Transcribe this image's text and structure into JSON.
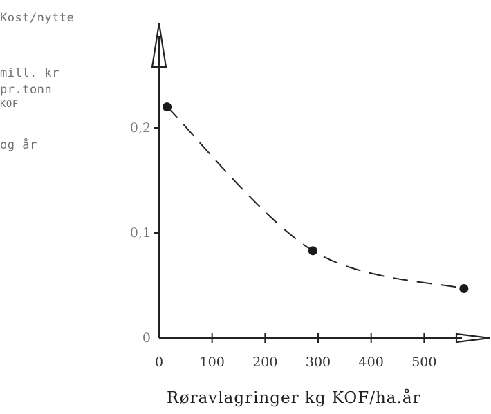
{
  "chart_data": {
    "type": "line",
    "ylabel_lines": [
      "Kost/nytte",
      "mill. kr",
      "pr.tonn",
      "KOF",
      "og år"
    ],
    "xlabel": "Røravlagringer kg KOF/ha.år",
    "x_ticks": [
      0,
      100,
      200,
      300,
      400,
      500
    ],
    "y_ticks": [
      {
        "value": 0,
        "label": "0"
      },
      {
        "value": 0.1,
        "label": "0,1"
      },
      {
        "value": 0.2,
        "label": "0,2"
      }
    ],
    "xlim": [
      0,
      600
    ],
    "ylim": [
      0,
      0.3
    ],
    "series": [
      {
        "points": [
          {
            "x": 15,
            "y": 0.22
          },
          {
            "x": 290,
            "y": 0.083
          },
          {
            "x": 575,
            "y": 0.047
          }
        ],
        "line_style": "dashed",
        "color": "#222222"
      }
    ]
  }
}
